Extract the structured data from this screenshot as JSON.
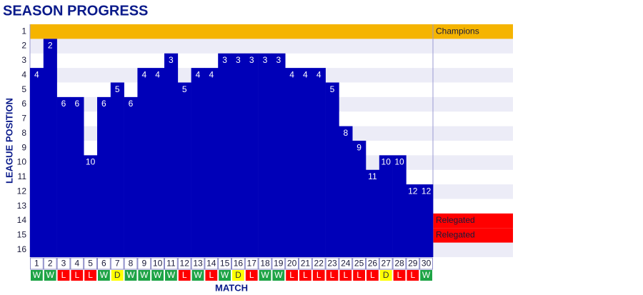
{
  "chart_data": {
    "type": "bar",
    "title": "SEASON PROGRESS",
    "x_label": "MATCH",
    "y_label": "LEAGUE POSITION",
    "categories": [
      1,
      2,
      3,
      4,
      5,
      6,
      7,
      8,
      9,
      10,
      11,
      12,
      13,
      14,
      15,
      16,
      17,
      18,
      19,
      20,
      21,
      22,
      23,
      24,
      25,
      26,
      27,
      28,
      29,
      30
    ],
    "values": [
      4,
      2,
      6,
      6,
      10,
      6,
      5,
      6,
      4,
      4,
      3,
      5,
      4,
      4,
      3,
      3,
      3,
      3,
      3,
      4,
      4,
      4,
      5,
      8,
      9,
      11,
      10,
      10,
      12,
      12
    ],
    "results": [
      "W",
      "W",
      "L",
      "L",
      "L",
      "W",
      "D",
      "W",
      "W",
      "W",
      "W",
      "L",
      "W",
      "L",
      "W",
      "D",
      "L",
      "W",
      "W",
      "L",
      "L",
      "L",
      "L",
      "L",
      "L",
      "L",
      "D",
      "L",
      "L",
      "W"
    ],
    "result_colors": {
      "W": "#1ea446",
      "L": "#ff0000",
      "D": "#ffff00"
    },
    "color": "#0000b8",
    "ylim": [
      1,
      16
    ],
    "inverted": true,
    "yticks": [
      1,
      2,
      3,
      4,
      5,
      6,
      7,
      8,
      9,
      10,
      11,
      12,
      13,
      14,
      15,
      16
    ],
    "zones": [
      {
        "position": 1,
        "label": "Champions",
        "color": "#f5b400"
      },
      {
        "position": 14,
        "label": "Relegated",
        "color": "#ff0000"
      },
      {
        "position": 15,
        "label": "Relegated",
        "color": "#ff0000"
      }
    ]
  }
}
